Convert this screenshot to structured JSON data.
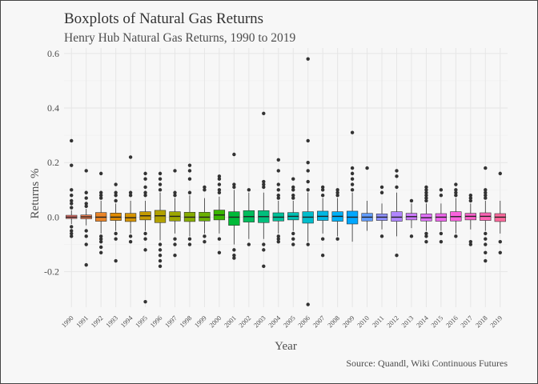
{
  "header": {
    "title": "Boxplots of Natural Gas Returns",
    "subtitle": "Henry Hub Natural Gas Returns, 1990 to 2019"
  },
  "caption": "Source: Quandl, Wiki Continuous Futures",
  "colors": {
    "panel_bg": "#f7f7f7",
    "grid_major": "#e6e6e6",
    "grid_minor": "#efefef",
    "axis_text": "#4d4d4d",
    "title_text": "#333333"
  },
  "chart_data": {
    "type": "boxplot",
    "title": "Boxplots of Natural Gas Returns",
    "subtitle": "Henry Hub Natural Gas Returns, 1990 to 2019",
    "xlabel": "Year",
    "ylabel": "Returns %",
    "ylim": [
      -0.33,
      0.62
    ],
    "yticks": [
      -0.2,
      0.0,
      0.2,
      0.4,
      0.6
    ],
    "ytick_labels": [
      "-0.2",
      "0.0",
      "0.2",
      "0.4",
      "0.6"
    ],
    "grid": true,
    "legend": "none",
    "categories": [
      "1990",
      "1991",
      "1992",
      "1993",
      "1994",
      "1995",
      "1996",
      "1997",
      "1998",
      "1999",
      "2000",
      "2001",
      "2002",
      "2003",
      "2004",
      "2005",
      "2006",
      "2007",
      "2008",
      "2009",
      "2010",
      "2011",
      "2012",
      "2013",
      "2014",
      "2015",
      "2016",
      "2017",
      "2018",
      "2019"
    ],
    "boxes": [
      {
        "year": "1990",
        "q1": -0.005,
        "median": 0.0,
        "q3": 0.007,
        "lower": -0.025,
        "upper": 0.025,
        "outliers": [
          0.28,
          0.19,
          0.1,
          0.08,
          0.06,
          0.05,
          0.035,
          -0.035,
          -0.05,
          -0.06,
          -0.07
        ],
        "color": "#f8766d"
      },
      {
        "year": "1991",
        "q1": -0.006,
        "median": 0.001,
        "q3": 0.008,
        "lower": -0.03,
        "upper": 0.03,
        "outliers": [
          0.17,
          0.09,
          0.07,
          0.05,
          0.04,
          -0.05,
          -0.07,
          -0.1,
          -0.175
        ],
        "color": "#f17e4f"
      },
      {
        "year": "1992",
        "q1": -0.015,
        "median": 0.0,
        "q3": 0.017,
        "lower": -0.06,
        "upper": 0.06,
        "outliers": [
          0.16,
          0.09,
          0.08,
          0.07,
          -0.07,
          -0.08,
          -0.09,
          -0.11,
          -0.13
        ],
        "color": "#e98428"
      },
      {
        "year": "1993",
        "q1": -0.012,
        "median": 0.0,
        "q3": 0.015,
        "lower": -0.05,
        "upper": 0.05,
        "outliers": [
          0.12,
          0.09,
          0.08,
          0.06,
          -0.06,
          -0.08,
          -0.16
        ],
        "color": "#e08b00"
      },
      {
        "year": "1994",
        "q1": -0.016,
        "median": -0.002,
        "q3": 0.014,
        "lower": -0.06,
        "upper": 0.06,
        "outliers": [
          0.22,
          0.09,
          0.08,
          -0.07,
          -0.09
        ],
        "color": "#d49300"
      },
      {
        "year": "1995",
        "q1": -0.01,
        "median": 0.005,
        "q3": 0.02,
        "lower": -0.05,
        "upper": 0.06,
        "outliers": [
          0.16,
          0.14,
          0.11,
          0.09,
          0.08,
          -0.06,
          -0.08,
          -0.12,
          -0.31
        ],
        "color": "#c49a00"
      },
      {
        "year": "1996",
        "q1": -0.02,
        "median": 0.005,
        "q3": 0.025,
        "lower": -0.085,
        "upper": 0.09,
        "outliers": [
          0.16,
          0.14,
          0.12,
          0.1,
          -0.1,
          -0.12,
          -0.14,
          -0.16,
          -0.18
        ],
        "color": "#b2a100"
      },
      {
        "year": "1997",
        "q1": -0.014,
        "median": 0.003,
        "q3": 0.02,
        "lower": -0.06,
        "upper": 0.07,
        "outliers": [
          0.17,
          0.09,
          0.08,
          -0.08,
          -0.1,
          -0.14
        ],
        "color": "#9da700"
      },
      {
        "year": "1998",
        "q1": -0.016,
        "median": 0.0,
        "q3": 0.018,
        "lower": -0.07,
        "upper": 0.08,
        "outliers": [
          0.19,
          0.17,
          0.14,
          0.09,
          -0.08,
          -0.1
        ],
        "color": "#86ac00"
      },
      {
        "year": "1999",
        "q1": -0.014,
        "median": 0.0,
        "q3": 0.018,
        "lower": -0.06,
        "upper": 0.07,
        "outliers": [
          0.11,
          0.1,
          -0.07,
          -0.09
        ],
        "color": "#6bb100"
      },
      {
        "year": "2000",
        "q1": -0.01,
        "median": 0.008,
        "q3": 0.026,
        "lower": -0.06,
        "upper": 0.075,
        "outliers": [
          0.15,
          0.14,
          0.12,
          0.1,
          0.09,
          -0.08,
          -0.13
        ],
        "color": "#39b600"
      },
      {
        "year": "2001",
        "q1": -0.03,
        "median": 0.0,
        "q3": 0.02,
        "lower": -0.1,
        "upper": 0.1,
        "outliers": [
          0.23,
          0.12,
          0.11,
          -0.12,
          -0.14,
          -0.15
        ],
        "color": "#00ba38"
      },
      {
        "year": "2002",
        "q1": -0.018,
        "median": 0.002,
        "q3": 0.024,
        "lower": -0.08,
        "upper": 0.09,
        "outliers": [
          0.1,
          -0.1
        ],
        "color": "#00bd5c"
      },
      {
        "year": "2003",
        "q1": -0.02,
        "median": 0.002,
        "q3": 0.024,
        "lower": -0.08,
        "upper": 0.09,
        "outliers": [
          0.38,
          0.13,
          0.12,
          0.11,
          -0.1,
          -0.12,
          -0.18
        ],
        "color": "#00bf7d"
      },
      {
        "year": "2004",
        "q1": -0.014,
        "median": 0.0,
        "q3": 0.016,
        "lower": -0.06,
        "upper": 0.06,
        "outliers": [
          0.21,
          0.17,
          0.12,
          0.1,
          0.08,
          0.07,
          -0.07,
          -0.08,
          -0.09
        ],
        "color": "#00c19a"
      },
      {
        "year": "2005",
        "q1": -0.01,
        "median": 0.003,
        "q3": 0.017,
        "lower": -0.05,
        "upper": 0.06,
        "outliers": [
          0.14,
          0.11,
          0.1,
          0.08,
          0.07,
          -0.06,
          -0.08,
          -0.1
        ],
        "color": "#00c0b4"
      },
      {
        "year": "2006",
        "q1": -0.022,
        "median": 0.0,
        "q3": 0.02,
        "lower": -0.09,
        "upper": 0.09,
        "outliers": [
          0.58,
          0.28,
          0.2,
          0.17,
          0.13,
          0.1,
          -0.1,
          -0.32
        ],
        "color": "#00bdcc"
      },
      {
        "year": "2007",
        "q1": -0.012,
        "median": 0.003,
        "q3": 0.022,
        "lower": -0.06,
        "upper": 0.07,
        "outliers": [
          0.11,
          0.1,
          0.08,
          -0.08,
          -0.14
        ],
        "color": "#00b8e4"
      },
      {
        "year": "2008",
        "q1": -0.015,
        "median": 0.003,
        "q3": 0.02,
        "lower": -0.07,
        "upper": 0.07,
        "outliers": [
          0.1,
          0.09,
          0.08,
          -0.08
        ],
        "color": "#00b0f6"
      },
      {
        "year": "2009",
        "q1": -0.025,
        "median": 0.0,
        "q3": 0.022,
        "lower": -0.09,
        "upper": 0.09,
        "outliers": [
          0.31,
          0.18,
          0.16,
          0.14,
          0.12,
          0.1
        ],
        "color": "#00a7ff"
      },
      {
        "year": "2010",
        "q1": -0.014,
        "median": 0.0,
        "q3": 0.014,
        "lower": -0.05,
        "upper": 0.06,
        "outliers": [
          0.18
        ],
        "color": "#619cff"
      },
      {
        "year": "2011",
        "q1": -0.012,
        "median": 0.0,
        "q3": 0.012,
        "lower": -0.045,
        "upper": 0.05,
        "outliers": [
          0.11,
          0.09,
          -0.07
        ],
        "color": "#8f91ff"
      },
      {
        "year": "2012",
        "q1": -0.015,
        "median": 0.0,
        "q3": 0.02,
        "lower": -0.07,
        "upper": 0.09,
        "outliers": [
          0.17,
          0.15,
          0.11,
          -0.14
        ],
        "color": "#b186ff"
      },
      {
        "year": "2013",
        "q1": -0.01,
        "median": 0.002,
        "q3": 0.014,
        "lower": -0.04,
        "upper": 0.05,
        "outliers": [
          0.06,
          -0.07
        ],
        "color": "#cc7bff"
      },
      {
        "year": "2014",
        "q1": -0.014,
        "median": -0.002,
        "q3": 0.012,
        "lower": -0.05,
        "upper": 0.05,
        "outliers": [
          0.11,
          0.1,
          0.09,
          0.08,
          0.07,
          0.06,
          -0.06,
          -0.07,
          -0.09
        ],
        "color": "#e070f8"
      },
      {
        "year": "2015",
        "q1": -0.015,
        "median": 0.0,
        "q3": 0.013,
        "lower": -0.05,
        "upper": 0.05,
        "outliers": [
          0.1,
          0.08,
          -0.06,
          -0.09
        ],
        "color": "#ef67ed"
      },
      {
        "year": "2016",
        "q1": -0.014,
        "median": 0.002,
        "q3": 0.02,
        "lower": -0.06,
        "upper": 0.07,
        "outliers": [
          0.12,
          0.1,
          0.09,
          0.08,
          -0.07
        ],
        "color": "#fa62de"
      },
      {
        "year": "2017",
        "q1": -0.01,
        "median": 0.003,
        "q3": 0.014,
        "lower": -0.045,
        "upper": 0.05,
        "outliers": [
          0.08,
          0.07,
          0.06,
          -0.09,
          -0.1
        ],
        "color": "#ff62cc"
      },
      {
        "year": "2018",
        "q1": -0.012,
        "median": 0.003,
        "q3": 0.016,
        "lower": -0.05,
        "upper": 0.06,
        "outliers": [
          0.18,
          0.1,
          0.09,
          0.08,
          0.07,
          -0.06,
          -0.08,
          -0.1,
          -0.13,
          -0.16
        ],
        "color": "#ff64b6"
      },
      {
        "year": "2019",
        "q1": -0.016,
        "median": 0.0,
        "q3": 0.013,
        "lower": -0.06,
        "upper": 0.06,
        "outliers": [
          0.16,
          -0.09,
          -0.13
        ],
        "color": "#ff699d"
      }
    ]
  }
}
